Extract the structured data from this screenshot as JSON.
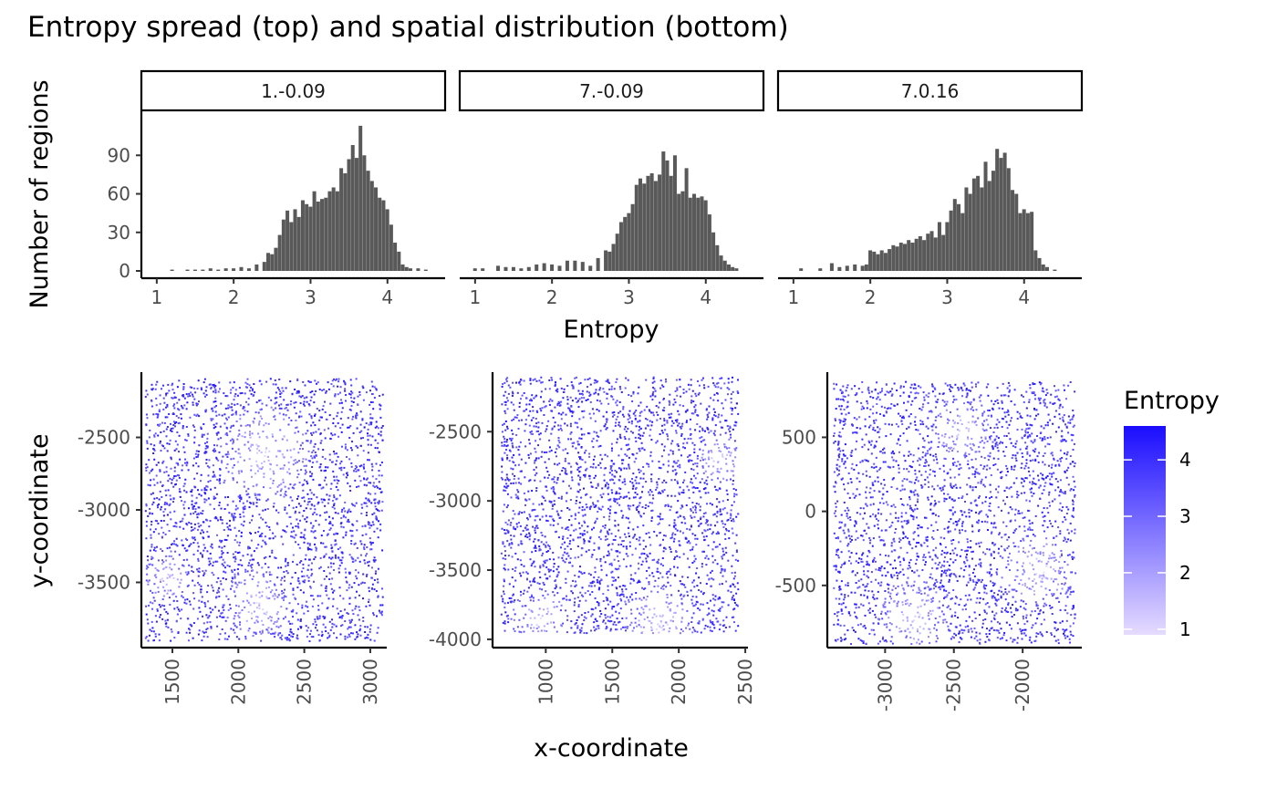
{
  "figure": {
    "title": "Entropy spread (top) and spatial distribution (bottom)"
  },
  "colors": {
    "bar": "#595959",
    "low": "#e6dcff",
    "high": "#1a0dff",
    "axis": "#000000",
    "tick_label": "#4d4d4d"
  },
  "chart_data": [
    {
      "type": "bar",
      "title": "Entropy spread",
      "xlabel": "Entropy",
      "ylabel": "Number of regions",
      "xlim": [
        0.8,
        4.75
      ],
      "ylim": [
        0,
        125
      ],
      "xticks": [
        1,
        2,
        3,
        4
      ],
      "yticks": [
        0,
        30,
        60,
        90
      ],
      "bin_width": 0.05,
      "panels": [
        {
          "strip": "1.-0.09",
          "bins": [
            {
              "x": 1.2,
              "y": 1
            },
            {
              "x": 1.4,
              "y": 1
            },
            {
              "x": 1.5,
              "y": 1
            },
            {
              "x": 1.6,
              "y": 1
            },
            {
              "x": 1.7,
              "y": 2
            },
            {
              "x": 1.8,
              "y": 1
            },
            {
              "x": 1.9,
              "y": 2
            },
            {
              "x": 2.0,
              "y": 2
            },
            {
              "x": 2.1,
              "y": 3
            },
            {
              "x": 2.2,
              "y": 2
            },
            {
              "x": 2.3,
              "y": 5
            },
            {
              "x": 2.4,
              "y": 7
            },
            {
              "x": 2.45,
              "y": 14
            },
            {
              "x": 2.5,
              "y": 13
            },
            {
              "x": 2.55,
              "y": 18
            },
            {
              "x": 2.6,
              "y": 28
            },
            {
              "x": 2.65,
              "y": 40
            },
            {
              "x": 2.7,
              "y": 47
            },
            {
              "x": 2.75,
              "y": 38
            },
            {
              "x": 2.8,
              "y": 48
            },
            {
              "x": 2.85,
              "y": 42
            },
            {
              "x": 2.9,
              "y": 55
            },
            {
              "x": 2.95,
              "y": 52
            },
            {
              "x": 3.0,
              "y": 50
            },
            {
              "x": 3.05,
              "y": 62
            },
            {
              "x": 3.1,
              "y": 54
            },
            {
              "x": 3.15,
              "y": 56
            },
            {
              "x": 3.2,
              "y": 57
            },
            {
              "x": 3.25,
              "y": 62
            },
            {
              "x": 3.3,
              "y": 65
            },
            {
              "x": 3.35,
              "y": 62
            },
            {
              "x": 3.4,
              "y": 80
            },
            {
              "x": 3.45,
              "y": 76
            },
            {
              "x": 3.5,
              "y": 87
            },
            {
              "x": 3.55,
              "y": 98
            },
            {
              "x": 3.6,
              "y": 88
            },
            {
              "x": 3.65,
              "y": 113
            },
            {
              "x": 3.7,
              "y": 90
            },
            {
              "x": 3.75,
              "y": 78
            },
            {
              "x": 3.8,
              "y": 70
            },
            {
              "x": 3.85,
              "y": 65
            },
            {
              "x": 3.9,
              "y": 57
            },
            {
              "x": 3.95,
              "y": 55
            },
            {
              "x": 4.0,
              "y": 48
            },
            {
              "x": 4.05,
              "y": 36
            },
            {
              "x": 4.1,
              "y": 22
            },
            {
              "x": 4.15,
              "y": 15
            },
            {
              "x": 4.2,
              "y": 5
            },
            {
              "x": 4.25,
              "y": 3
            },
            {
              "x": 4.3,
              "y": 2
            },
            {
              "x": 4.4,
              "y": 2
            },
            {
              "x": 4.5,
              "y": 1
            }
          ]
        },
        {
          "strip": "7.-0.09",
          "bins": [
            {
              "x": 1.0,
              "y": 2
            },
            {
              "x": 1.1,
              "y": 2
            },
            {
              "x": 1.3,
              "y": 4
            },
            {
              "x": 1.4,
              "y": 3
            },
            {
              "x": 1.5,
              "y": 3
            },
            {
              "x": 1.6,
              "y": 2
            },
            {
              "x": 1.7,
              "y": 3
            },
            {
              "x": 1.8,
              "y": 5
            },
            {
              "x": 1.9,
              "y": 6
            },
            {
              "x": 2.0,
              "y": 5
            },
            {
              "x": 2.1,
              "y": 4
            },
            {
              "x": 2.2,
              "y": 8
            },
            {
              "x": 2.3,
              "y": 8
            },
            {
              "x": 2.4,
              "y": 7
            },
            {
              "x": 2.5,
              "y": 4
            },
            {
              "x": 2.6,
              "y": 10
            },
            {
              "x": 2.7,
              "y": 16
            },
            {
              "x": 2.75,
              "y": 15
            },
            {
              "x": 2.8,
              "y": 21
            },
            {
              "x": 2.85,
              "y": 29
            },
            {
              "x": 2.9,
              "y": 38
            },
            {
              "x": 2.95,
              "y": 42
            },
            {
              "x": 3.0,
              "y": 45
            },
            {
              "x": 3.05,
              "y": 52
            },
            {
              "x": 3.1,
              "y": 67
            },
            {
              "x": 3.15,
              "y": 72
            },
            {
              "x": 3.2,
              "y": 68
            },
            {
              "x": 3.25,
              "y": 74
            },
            {
              "x": 3.3,
              "y": 76
            },
            {
              "x": 3.35,
              "y": 70
            },
            {
              "x": 3.4,
              "y": 75
            },
            {
              "x": 3.45,
              "y": 93
            },
            {
              "x": 3.5,
              "y": 86
            },
            {
              "x": 3.55,
              "y": 74
            },
            {
              "x": 3.6,
              "y": 90
            },
            {
              "x": 3.65,
              "y": 60
            },
            {
              "x": 3.7,
              "y": 62
            },
            {
              "x": 3.75,
              "y": 80
            },
            {
              "x": 3.8,
              "y": 57
            },
            {
              "x": 3.85,
              "y": 60
            },
            {
              "x": 3.9,
              "y": 57
            },
            {
              "x": 3.95,
              "y": 58
            },
            {
              "x": 4.0,
              "y": 55
            },
            {
              "x": 4.05,
              "y": 44
            },
            {
              "x": 4.1,
              "y": 30
            },
            {
              "x": 4.15,
              "y": 20
            },
            {
              "x": 4.2,
              "y": 12
            },
            {
              "x": 4.25,
              "y": 8
            },
            {
              "x": 4.3,
              "y": 5
            },
            {
              "x": 4.35,
              "y": 3
            },
            {
              "x": 4.4,
              "y": 2
            }
          ]
        },
        {
          "strip": "7.0.16",
          "bins": [
            {
              "x": 1.1,
              "y": 2
            },
            {
              "x": 1.35,
              "y": 2
            },
            {
              "x": 1.5,
              "y": 6
            },
            {
              "x": 1.6,
              "y": 3
            },
            {
              "x": 1.7,
              "y": 4
            },
            {
              "x": 1.8,
              "y": 5
            },
            {
              "x": 1.9,
              "y": 4
            },
            {
              "x": 1.95,
              "y": 5
            },
            {
              "x": 2.0,
              "y": 16
            },
            {
              "x": 2.05,
              "y": 15
            },
            {
              "x": 2.1,
              "y": 13
            },
            {
              "x": 2.15,
              "y": 16
            },
            {
              "x": 2.2,
              "y": 14
            },
            {
              "x": 2.25,
              "y": 17
            },
            {
              "x": 2.3,
              "y": 20
            },
            {
              "x": 2.35,
              "y": 19
            },
            {
              "x": 2.4,
              "y": 22
            },
            {
              "x": 2.45,
              "y": 21
            },
            {
              "x": 2.5,
              "y": 24
            },
            {
              "x": 2.55,
              "y": 22
            },
            {
              "x": 2.6,
              "y": 25
            },
            {
              "x": 2.65,
              "y": 27
            },
            {
              "x": 2.7,
              "y": 24
            },
            {
              "x": 2.75,
              "y": 29
            },
            {
              "x": 2.8,
              "y": 31
            },
            {
              "x": 2.85,
              "y": 26
            },
            {
              "x": 2.9,
              "y": 38
            },
            {
              "x": 2.95,
              "y": 28
            },
            {
              "x": 3.0,
              "y": 38
            },
            {
              "x": 3.05,
              "y": 47
            },
            {
              "x": 3.1,
              "y": 56
            },
            {
              "x": 3.15,
              "y": 52
            },
            {
              "x": 3.2,
              "y": 45
            },
            {
              "x": 3.25,
              "y": 65
            },
            {
              "x": 3.3,
              "y": 60
            },
            {
              "x": 3.35,
              "y": 72
            },
            {
              "x": 3.4,
              "y": 74
            },
            {
              "x": 3.45,
              "y": 65
            },
            {
              "x": 3.5,
              "y": 85
            },
            {
              "x": 3.55,
              "y": 70
            },
            {
              "x": 3.6,
              "y": 78
            },
            {
              "x": 3.65,
              "y": 95
            },
            {
              "x": 3.7,
              "y": 88
            },
            {
              "x": 3.75,
              "y": 92
            },
            {
              "x": 3.8,
              "y": 80
            },
            {
              "x": 3.85,
              "y": 63
            },
            {
              "x": 3.9,
              "y": 60
            },
            {
              "x": 3.95,
              "y": 45
            },
            {
              "x": 4.0,
              "y": 48
            },
            {
              "x": 4.05,
              "y": 45
            },
            {
              "x": 4.1,
              "y": 46
            },
            {
              "x": 4.15,
              "y": 16
            },
            {
              "x": 4.2,
              "y": 10
            },
            {
              "x": 4.25,
              "y": 5
            },
            {
              "x": 4.3,
              "y": 3
            },
            {
              "x": 4.4,
              "y": 1
            }
          ]
        }
      ]
    },
    {
      "type": "scatter",
      "title": "spatial distribution",
      "xlabel": "x-coordinate",
      "ylabel": "y-coordinate",
      "legend": {
        "title": "Entropy",
        "ticks": [
          1,
          2,
          3,
          4
        ],
        "range": [
          0.9,
          4.6
        ],
        "position": "right"
      },
      "panels": [
        {
          "xlim": [
            1265,
            3125
          ],
          "ylim": [
            -3950,
            -2050
          ],
          "xticks": [
            1500,
            2000,
            2500,
            3000
          ],
          "yticks": [
            -2500,
            -3000,
            -3500
          ],
          "extent": {
            "x": [
              1290,
              3090
            ],
            "y": [
              -3900,
              -2085
            ]
          },
          "n_points": 2600,
          "low_entropy_zones": [
            {
              "x": 2200,
              "y": -2600,
              "r": 400
            },
            {
              "x": 2150,
              "y": -3650,
              "r": 300
            },
            {
              "x": 1450,
              "y": -3450,
              "r": 200
            }
          ]
        },
        {
          "xlim": [
            600,
            2520
          ],
          "ylim": [
            -4060,
            -2070
          ],
          "xticks": [
            1000,
            1500,
            2000,
            2500
          ],
          "yticks": [
            -2500,
            -3000,
            -3500,
            -4000
          ],
          "extent": {
            "x": [
              660,
              2440
            ],
            "y": [
              -3950,
              -2100
            ]
          },
          "n_points": 2600,
          "low_entropy_zones": [
            {
              "x": 1850,
              "y": -3900,
              "r": 350
            },
            {
              "x": 950,
              "y": -3850,
              "r": 250
            },
            {
              "x": 2300,
              "y": -2700,
              "r": 200
            }
          ]
        },
        {
          "xlim": [
            -3420,
            -1570
          ],
          "ylim": [
            -920,
            940
          ],
          "xticks": [
            -3000,
            -2500,
            -2000
          ],
          "yticks": [
            500,
            0,
            -500
          ],
          "extent": {
            "x": [
              -3380,
              -1620
            ],
            "y": [
              -890,
              880
            ]
          },
          "n_points": 2600,
          "low_entropy_zones": [
            {
              "x": -2800,
              "y": -700,
              "r": 300
            },
            {
              "x": -2450,
              "y": 550,
              "r": 250
            },
            {
              "x": -1900,
              "y": -400,
              "r": 300
            }
          ]
        }
      ]
    }
  ]
}
